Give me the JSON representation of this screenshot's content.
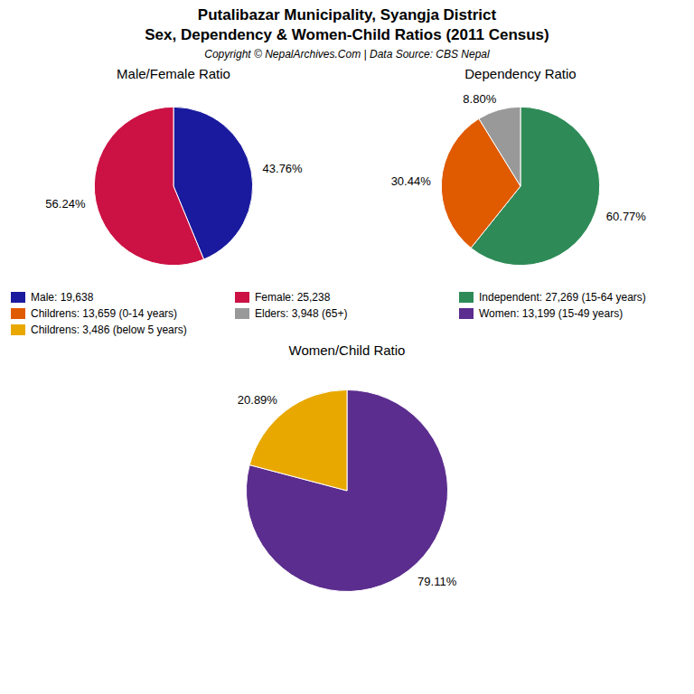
{
  "title": "Putalibazar Municipality, Syangja District",
  "subtitle": "Sex, Dependency & Women-Child Ratios (2011 Census)",
  "caption": "Copyright © NepalArchives.Com | Data Source: CBS Nepal",
  "chart_data": [
    {
      "type": "pie",
      "title": "Male/Female Ratio",
      "categories": [
        "Male: 19,638",
        "Female: 25,238"
      ],
      "values": [
        43.76,
        56.24
      ],
      "value_labels": [
        "43.76%",
        "56.24%"
      ],
      "colors": [
        "#1a1a9e",
        "#cc1144"
      ],
      "data_labels": true,
      "legend": "center"
    },
    {
      "type": "pie",
      "title": "Dependency Ratio",
      "categories": [
        "Independent: 27,269 (15-64 years)",
        "Childrens: 13,659 (0-14 years)",
        "Elders: 3,948 (65+)"
      ],
      "values": [
        60.77,
        30.44,
        8.8
      ],
      "value_labels": [
        "60.77%",
        "30.44%",
        "8.80%"
      ],
      "colors": [
        "#2e8b57",
        "#e05a00",
        "#999999"
      ],
      "data_labels": true,
      "legend": "center"
    },
    {
      "type": "pie",
      "title": "Women/Child Ratio",
      "categories": [
        "Women: 13,199 (15-49 years)",
        "Childrens: 3,486 (below 5 years)"
      ],
      "values": [
        79.11,
        20.89
      ],
      "value_labels": [
        "79.11%",
        "20.89%"
      ],
      "colors": [
        "#5b2d8e",
        "#e8a800"
      ],
      "data_labels": true,
      "legend": "center"
    }
  ]
}
